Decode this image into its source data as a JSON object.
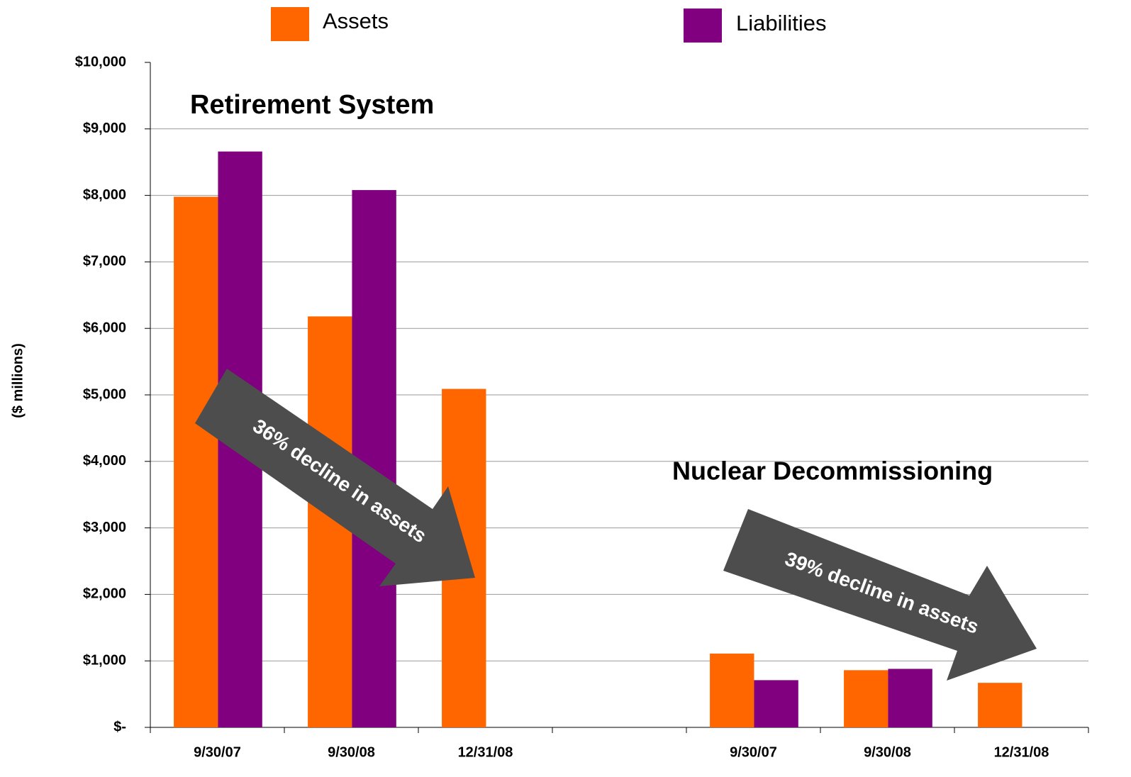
{
  "chart_data": {
    "type": "bar",
    "categories": [
      "9/30/07",
      "9/30/08",
      "12/31/08",
      null,
      "9/30/07",
      "9/30/08",
      "12/31/08"
    ],
    "series": [
      {
        "name": "Assets",
        "color": "#ff6600",
        "values": [
          7980,
          6180,
          5090,
          null,
          1110,
          860,
          670
        ]
      },
      {
        "name": "Liabilities",
        "color": "#800080",
        "values": [
          8660,
          8080,
          null,
          null,
          710,
          880,
          null
        ]
      }
    ],
    "ylabel": "($ millions)",
    "ylim": [
      0,
      10000
    ],
    "yticks": [
      {
        "value": 0,
        "label": "$-"
      },
      {
        "value": 1000,
        "label": "$1,000"
      },
      {
        "value": 2000,
        "label": "$2,000"
      },
      {
        "value": 3000,
        "label": "$3,000"
      },
      {
        "value": 4000,
        "label": "$4,000"
      },
      {
        "value": 5000,
        "label": "$5,000"
      },
      {
        "value": 6000,
        "label": "$6,000"
      },
      {
        "value": 7000,
        "label": "$7,000"
      },
      {
        "value": 8000,
        "label": "$8,000"
      },
      {
        "value": 9000,
        "label": "$9,000"
      },
      {
        "value": 10000,
        "label": "$10,000"
      }
    ],
    "grid": true,
    "annotations": [
      "Retirement System",
      "Nuclear Decommissioning",
      "36% decline in assets",
      "39% decline in assets"
    ]
  }
}
